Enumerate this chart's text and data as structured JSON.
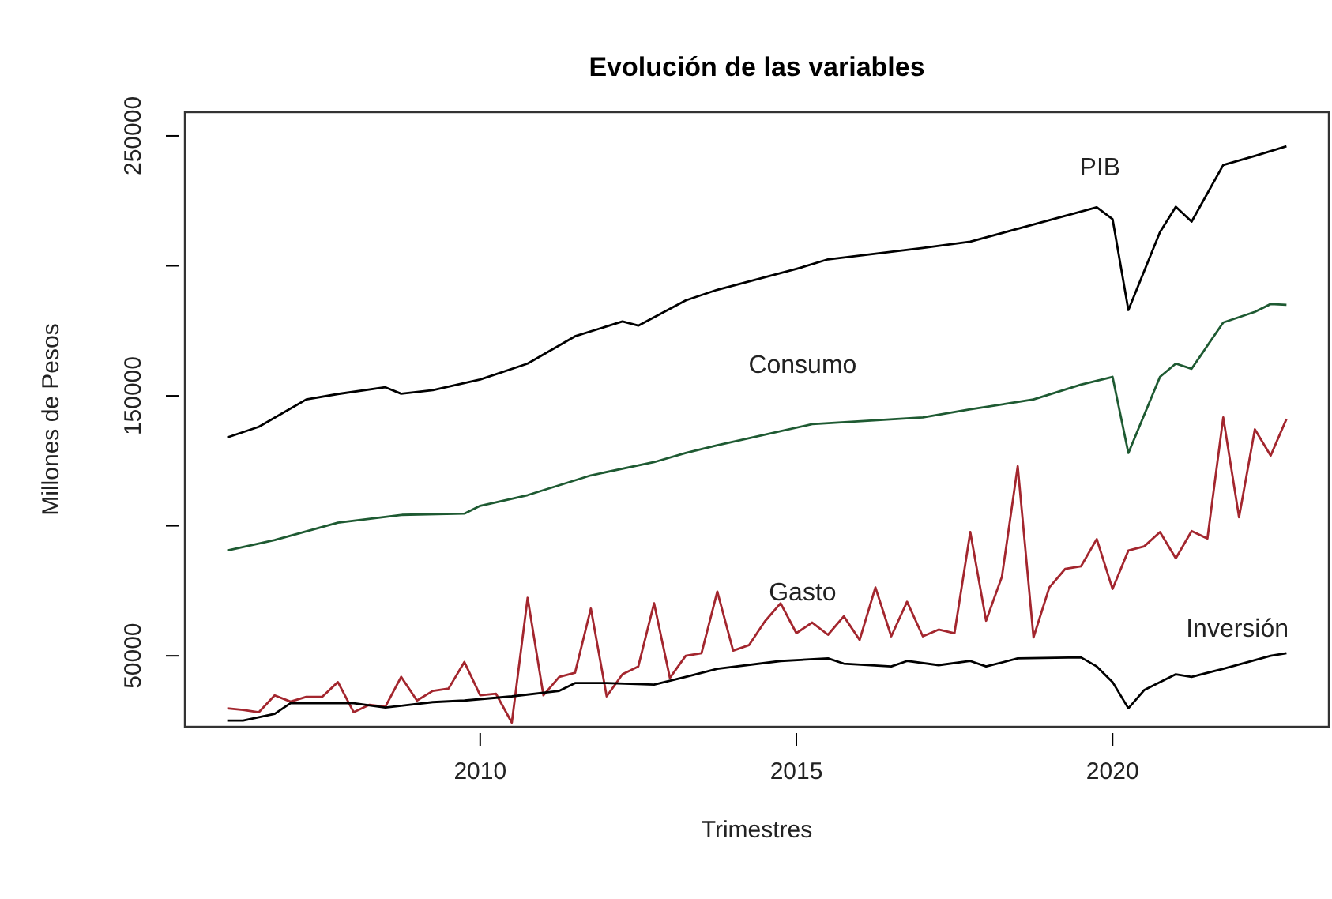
{
  "chart_data": {
    "type": "line",
    "title": "Evolución de las variables",
    "xlabel": "Trimestres",
    "ylabel": "Millones de Pesos",
    "xlim": [
      2005.33,
      2023.42
    ],
    "ylim": [
      22700,
      259100
    ],
    "xticks": [
      2010,
      2015,
      2020
    ],
    "yticks": [
      50000,
      {
        "value": 100000,
        "label": null
      },
      150000,
      {
        "value": 200000,
        "label": null
      },
      250000
    ],
    "grid": false,
    "legend": false,
    "marker": "none",
    "line_style": "solid",
    "x": [
      2006,
      2006.25,
      2006.5,
      2006.75,
      2007,
      2007.25,
      2007.5,
      2007.75,
      2008,
      2008.25,
      2008.5,
      2008.75,
      2009,
      2009.25,
      2009.5,
      2009.75,
      2010,
      2010.25,
      2010.5,
      2010.75,
      2011,
      2011.25,
      2011.5,
      2011.75,
      2012,
      2012.25,
      2012.5,
      2012.75,
      2013,
      2013.25,
      2013.5,
      2013.75,
      2014,
      2014.25,
      2014.5,
      2014.75,
      2015,
      2015.25,
      2015.5,
      2015.75,
      2016,
      2016.25,
      2016.5,
      2016.75,
      2017,
      2017.25,
      2017.5,
      2017.75,
      2018,
      2018.25,
      2018.5,
      2018.75,
      2019,
      2019.25,
      2019.5,
      2019.75,
      2020,
      2020.25,
      2020.5,
      2020.75,
      2021,
      2021.25,
      2021.5,
      2021.75,
      2022,
      2022.25,
      2022.5,
      2022.75
    ],
    "series": [
      {
        "name": "PIB",
        "color": "#000000",
        "x": [
          2006,
          2006.5,
          2007.25,
          2007.75,
          2008.5,
          2008.75,
          2009.25,
          2010,
          2010.75,
          2011.5,
          2012.25,
          2012.5,
          2013.25,
          2013.75,
          2015,
          2015.5,
          2017,
          2017.75,
          2019.75,
          2020,
          2020.25,
          2020.75,
          2021,
          2021.25,
          2021.75,
          2022.25,
          2022.75
        ],
        "values": [
          134000,
          138100,
          148600,
          150700,
          153300,
          150800,
          152200,
          156300,
          162400,
          172900,
          178600,
          177000,
          186700,
          190800,
          198800,
          202500,
          206900,
          209300,
          222500,
          218000,
          183000,
          213000,
          222700,
          217000,
          238800,
          242300,
          246000
        ]
      },
      {
        "name": "Consumo",
        "color": "#1e5a32",
        "x": [
          2006,
          2006.75,
          2007.75,
          2008.75,
          2009.75,
          2010,
          2010.75,
          2011.75,
          2012.75,
          2013.25,
          2013.75,
          2015.25,
          2017,
          2017.75,
          2018.75,
          2019.5,
          2020,
          2020.25,
          2020.75,
          2021,
          2021.25,
          2021.75,
          2022.25,
          2022.5,
          2022.75
        ],
        "values": [
          90500,
          94500,
          101200,
          104200,
          104700,
          107700,
          111800,
          119400,
          124500,
          128000,
          131000,
          139100,
          141700,
          144800,
          148600,
          154300,
          157300,
          128000,
          157300,
          162400,
          160400,
          178200,
          182300,
          185300,
          185000
        ]
      },
      {
        "name": "Gasto",
        "color": "#a3262e",
        "values": [
          29800,
          29200,
          28300,
          34800,
          32400,
          34200,
          34200,
          39900,
          28300,
          31200,
          30400,
          41900,
          32800,
          36500,
          37400,
          47600,
          34800,
          35400,
          24300,
          72300,
          34800,
          41900,
          43500,
          68200,
          34400,
          42900,
          45900,
          70200,
          41500,
          50000,
          51000,
          74700,
          52000,
          54100,
          63200,
          70200,
          58700,
          62800,
          58100,
          65200,
          56100,
          76300,
          57500,
          70800,
          57500,
          60100,
          58700,
          97600,
          63500,
          80400,
          122900,
          57100,
          76300,
          83400,
          84400,
          94900,
          75700,
          90500,
          92100,
          97600,
          87500,
          98000,
          95100,
          141700,
          103300,
          137100,
          127000,
          141100
        ]
      },
      {
        "name": "Inversión",
        "color": "#000000",
        "x": [
          2006,
          2006.25,
          2006.75,
          2007,
          2007.5,
          2008,
          2008.5,
          2009.25,
          2009.75,
          2010.5,
          2011.25,
          2011.5,
          2012,
          2012.75,
          2013.25,
          2013.75,
          2014.75,
          2015.5,
          2015.75,
          2016.5,
          2016.75,
          2017.25,
          2017.75,
          2018,
          2018.5,
          2019.5,
          2019.75,
          2020,
          2020.25,
          2020.5,
          2021,
          2021.25,
          2021.75,
          2022.5,
          2022.75
        ],
        "values": [
          25100,
          25100,
          27700,
          31800,
          31800,
          31800,
          30100,
          32200,
          32800,
          34400,
          36500,
          39500,
          39500,
          38900,
          41900,
          45000,
          48000,
          49000,
          47000,
          45900,
          48000,
          46400,
          48000,
          45900,
          49000,
          49400,
          45900,
          39900,
          29800,
          36800,
          42900,
          41900,
          45000,
          50000,
          51000
        ]
      }
    ]
  }
}
